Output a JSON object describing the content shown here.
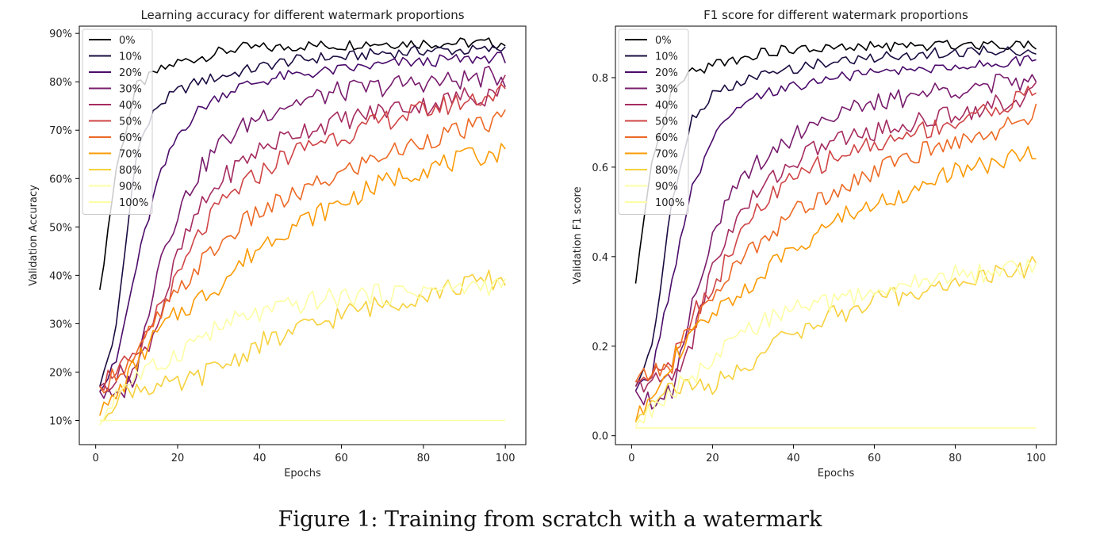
{
  "caption": "Figure 1: Training from scratch with a watermark",
  "colors": [
    "#000004",
    "#1b0c41",
    "#4a0c6b",
    "#781c6d",
    "#a52c60",
    "#cf4446",
    "#ed6925",
    "#fb9b06",
    "#f7d13d",
    "#fcffa4",
    "#fcffa4"
  ],
  "chart_data": [
    {
      "type": "line",
      "title": "Learning accuracy for different watermark proportions",
      "xlabel": "Epochs",
      "ylabel": "Validation Accuracy",
      "xlim": [
        -4,
        105
      ],
      "ylim": [
        0.05,
        0.915
      ],
      "xticks": [
        0,
        20,
        40,
        60,
        80,
        100
      ],
      "yticks": [
        0.1,
        0.2,
        0.3,
        0.4,
        0.5,
        0.6,
        0.7,
        0.8,
        0.9
      ],
      "ytick_labels": [
        "10%",
        "20%",
        "30%",
        "40%",
        "50%",
        "60%",
        "70%",
        "80%",
        "90%"
      ],
      "legend_position": "top-left",
      "grid": false,
      "x": [
        1,
        5,
        10,
        15,
        20,
        25,
        30,
        35,
        40,
        45,
        50,
        55,
        60,
        65,
        70,
        75,
        80,
        85,
        90,
        95,
        100
      ],
      "series": [
        {
          "name": "0%",
          "values": [
            0.37,
            0.62,
            0.79,
            0.82,
            0.84,
            0.85,
            0.86,
            0.87,
            0.87,
            0.87,
            0.875,
            0.875,
            0.875,
            0.88,
            0.88,
            0.88,
            0.88,
            0.88,
            0.88,
            0.88,
            0.88
          ]
        },
        {
          "name": "10%",
          "values": [
            0.17,
            0.29,
            0.66,
            0.75,
            0.78,
            0.8,
            0.81,
            0.82,
            0.83,
            0.84,
            0.845,
            0.85,
            0.85,
            0.855,
            0.86,
            0.86,
            0.865,
            0.865,
            0.865,
            0.865,
            0.87
          ]
        },
        {
          "name": "20%",
          "values": [
            0.16,
            0.22,
            0.42,
            0.59,
            0.69,
            0.74,
            0.77,
            0.79,
            0.8,
            0.81,
            0.815,
            0.82,
            0.825,
            0.83,
            0.835,
            0.84,
            0.84,
            0.845,
            0.845,
            0.85,
            0.85
          ]
        },
        {
          "name": "30%",
          "values": [
            0.16,
            0.14,
            0.2,
            0.42,
            0.53,
            0.61,
            0.67,
            0.7,
            0.73,
            0.75,
            0.76,
            0.77,
            0.78,
            0.785,
            0.79,
            0.795,
            0.8,
            0.8,
            0.805,
            0.81,
            0.81
          ]
        },
        {
          "name": "40%",
          "values": [
            0.17,
            0.19,
            0.21,
            0.3,
            0.44,
            0.53,
            0.59,
            0.63,
            0.66,
            0.68,
            0.7,
            0.71,
            0.72,
            0.73,
            0.74,
            0.75,
            0.75,
            0.76,
            0.77,
            0.77,
            0.8
          ]
        },
        {
          "name": "50%",
          "values": [
            0.17,
            0.21,
            0.22,
            0.33,
            0.39,
            0.48,
            0.54,
            0.58,
            0.61,
            0.64,
            0.66,
            0.68,
            0.69,
            0.7,
            0.72,
            0.73,
            0.74,
            0.75,
            0.76,
            0.77,
            0.78
          ]
        },
        {
          "name": "60%",
          "values": [
            0.17,
            0.2,
            0.23,
            0.31,
            0.36,
            0.42,
            0.46,
            0.5,
            0.53,
            0.55,
            0.57,
            0.59,
            0.61,
            0.63,
            0.65,
            0.66,
            0.68,
            0.69,
            0.7,
            0.71,
            0.73
          ]
        },
        {
          "name": "70%",
          "values": [
            0.11,
            0.15,
            0.22,
            0.28,
            0.32,
            0.35,
            0.38,
            0.42,
            0.46,
            0.49,
            0.51,
            0.53,
            0.55,
            0.57,
            0.59,
            0.61,
            0.62,
            0.63,
            0.64,
            0.65,
            0.655
          ]
        },
        {
          "name": "80%",
          "values": [
            0.1,
            0.15,
            0.17,
            0.17,
            0.17,
            0.19,
            0.21,
            0.23,
            0.26,
            0.27,
            0.29,
            0.3,
            0.32,
            0.33,
            0.34,
            0.35,
            0.36,
            0.37,
            0.38,
            0.39,
            0.39
          ]
        },
        {
          "name": "90%",
          "values": [
            0.09,
            0.16,
            0.19,
            0.21,
            0.24,
            0.27,
            0.29,
            0.31,
            0.32,
            0.33,
            0.34,
            0.35,
            0.355,
            0.36,
            0.36,
            0.365,
            0.37,
            0.37,
            0.375,
            0.38,
            0.38
          ]
        },
        {
          "name": "100%",
          "values": [
            0.1,
            0.1,
            0.1,
            0.1,
            0.1,
            0.1,
            0.1,
            0.1,
            0.1,
            0.1,
            0.1,
            0.1,
            0.1,
            0.1,
            0.1,
            0.1,
            0.1,
            0.1,
            0.1,
            0.1,
            0.1
          ]
        }
      ]
    },
    {
      "type": "line",
      "title": "F1 score for different watermark proportions",
      "xlabel": "Epochs",
      "ylabel": "Validation F1 score",
      "xlim": [
        -4,
        105
      ],
      "ylim": [
        -0.02,
        0.915
      ],
      "xticks": [
        0,
        20,
        40,
        60,
        80,
        100
      ],
      "yticks": [
        0.0,
        0.2,
        0.4,
        0.6,
        0.8
      ],
      "ytick_labels": [
        "0.0",
        "0.2",
        "0.4",
        "0.6",
        "0.8"
      ],
      "legend_position": "top-left",
      "grid": false,
      "x": [
        1,
        5,
        10,
        15,
        20,
        25,
        30,
        35,
        40,
        45,
        50,
        55,
        60,
        65,
        70,
        75,
        80,
        85,
        90,
        95,
        100
      ],
      "series": [
        {
          "name": "0%",
          "values": [
            0.34,
            0.6,
            0.77,
            0.81,
            0.83,
            0.84,
            0.85,
            0.86,
            0.86,
            0.865,
            0.865,
            0.865,
            0.87,
            0.87,
            0.87,
            0.87,
            0.875,
            0.875,
            0.875,
            0.875,
            0.875
          ]
        },
        {
          "name": "10%",
          "values": [
            0.11,
            0.2,
            0.52,
            0.71,
            0.76,
            0.78,
            0.8,
            0.81,
            0.82,
            0.83,
            0.835,
            0.84,
            0.845,
            0.85,
            0.85,
            0.855,
            0.855,
            0.86,
            0.86,
            0.86,
            0.86
          ]
        },
        {
          "name": "20%",
          "values": [
            0.1,
            0.14,
            0.35,
            0.55,
            0.66,
            0.72,
            0.75,
            0.77,
            0.78,
            0.79,
            0.8,
            0.805,
            0.81,
            0.815,
            0.82,
            0.82,
            0.825,
            0.83,
            0.83,
            0.835,
            0.84
          ]
        },
        {
          "name": "30%",
          "values": [
            0.1,
            0.08,
            0.1,
            0.3,
            0.45,
            0.54,
            0.6,
            0.64,
            0.67,
            0.7,
            0.72,
            0.73,
            0.74,
            0.75,
            0.76,
            0.77,
            0.775,
            0.78,
            0.785,
            0.79,
            0.79
          ]
        },
        {
          "name": "40%",
          "values": [
            0.11,
            0.12,
            0.13,
            0.21,
            0.38,
            0.47,
            0.53,
            0.58,
            0.61,
            0.64,
            0.66,
            0.67,
            0.68,
            0.69,
            0.7,
            0.71,
            0.72,
            0.73,
            0.74,
            0.75,
            0.77
          ]
        },
        {
          "name": "50%",
          "values": [
            0.12,
            0.15,
            0.17,
            0.27,
            0.33,
            0.42,
            0.49,
            0.54,
            0.57,
            0.6,
            0.62,
            0.64,
            0.65,
            0.66,
            0.68,
            0.69,
            0.7,
            0.72,
            0.73,
            0.75,
            0.77
          ]
        },
        {
          "name": "60%",
          "values": [
            0.12,
            0.14,
            0.16,
            0.25,
            0.31,
            0.37,
            0.42,
            0.46,
            0.5,
            0.52,
            0.55,
            0.57,
            0.59,
            0.61,
            0.63,
            0.64,
            0.66,
            0.67,
            0.68,
            0.7,
            0.72
          ]
        },
        {
          "name": "70%",
          "values": [
            0.03,
            0.1,
            0.17,
            0.22,
            0.27,
            0.31,
            0.34,
            0.38,
            0.42,
            0.45,
            0.48,
            0.5,
            0.52,
            0.53,
            0.55,
            0.57,
            0.59,
            0.6,
            0.61,
            0.62,
            0.64
          ]
        },
        {
          "name": "80%",
          "values": [
            0.03,
            0.09,
            0.11,
            0.11,
            0.11,
            0.14,
            0.17,
            0.2,
            0.23,
            0.25,
            0.27,
            0.28,
            0.3,
            0.31,
            0.32,
            0.33,
            0.34,
            0.35,
            0.36,
            0.37,
            0.38
          ]
        },
        {
          "name": "90%",
          "values": [
            0.02,
            0.06,
            0.1,
            0.13,
            0.16,
            0.21,
            0.24,
            0.27,
            0.28,
            0.29,
            0.3,
            0.31,
            0.32,
            0.33,
            0.34,
            0.35,
            0.36,
            0.36,
            0.37,
            0.375,
            0.375
          ]
        },
        {
          "name": "100%",
          "values": [
            0.017,
            0.017,
            0.017,
            0.017,
            0.017,
            0.017,
            0.017,
            0.017,
            0.017,
            0.017,
            0.017,
            0.017,
            0.017,
            0.017,
            0.017,
            0.017,
            0.017,
            0.017,
            0.017,
            0.017,
            0.017
          ]
        }
      ]
    }
  ]
}
